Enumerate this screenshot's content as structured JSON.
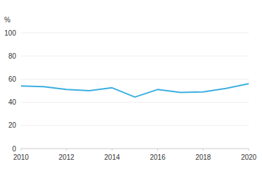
{
  "chart_data": {
    "type": "line",
    "y_label": "%",
    "x": [
      2010,
      2011,
      2012,
      2013,
      2014,
      2015,
      2016,
      2017,
      2018,
      2019,
      2020
    ],
    "values": [
      54,
      53.5,
      51,
      50,
      52.5,
      44.5,
      51,
      48.5,
      49,
      52,
      56
    ],
    "color": "#3aaee0",
    "xlim": [
      2010,
      2020
    ],
    "xticks": [
      2010,
      2012,
      2014,
      2016,
      2018,
      2020
    ],
    "ylim": [
      0,
      100
    ],
    "yticks": [
      0,
      20,
      40,
      60,
      80,
      100
    ],
    "grid": true
  }
}
